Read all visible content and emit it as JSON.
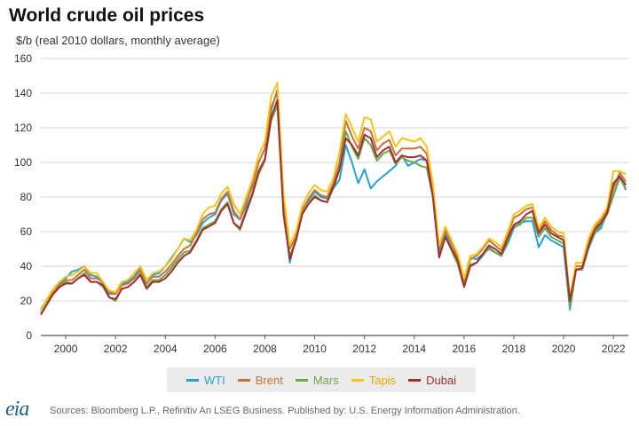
{
  "header": {
    "title": "World crude oil prices",
    "subtitle": "$/b (real 2010 dollars, monthly average)"
  },
  "footer": {
    "logo": "eia",
    "sources": "Sources: Bloomberg L.P., Refinitiv An LSEG Business. Published by: U.S. Energy Information Administration."
  },
  "chart_data": {
    "type": "line",
    "title": "World crude oil prices",
    "ylabel": "$/b (real 2010 dollars, monthly average)",
    "xlabel": "",
    "xlim": [
      1999.0,
      2022.6
    ],
    "ylim": [
      0,
      160
    ],
    "yticks": [
      0,
      20,
      40,
      60,
      80,
      100,
      120,
      140,
      160
    ],
    "xticks": [
      2000,
      2002,
      2004,
      2006,
      2008,
      2010,
      2012,
      2014,
      2016,
      2018,
      2020,
      2022
    ],
    "xtick_labels": [
      "2000",
      "2002",
      "2004",
      "2006",
      "2008",
      "2010",
      "2012",
      "2014",
      "2016",
      "2018",
      "2020",
      "2022"
    ],
    "grid": "horizontal",
    "legend_position": "bottom",
    "x": [
      1999.0,
      1999.25,
      1999.5,
      1999.75,
      2000.0,
      2000.25,
      2000.5,
      2000.75,
      2001.0,
      2001.25,
      2001.5,
      2001.75,
      2002.0,
      2002.25,
      2002.5,
      2002.75,
      2003.0,
      2003.25,
      2003.5,
      2003.75,
      2004.0,
      2004.25,
      2004.5,
      2004.75,
      2005.0,
      2005.25,
      2005.5,
      2005.75,
      2006.0,
      2006.25,
      2006.5,
      2006.75,
      2007.0,
      2007.25,
      2007.5,
      2007.75,
      2008.0,
      2008.25,
      2008.5,
      2008.75,
      2009.0,
      2009.25,
      2009.5,
      2009.75,
      2010.0,
      2010.25,
      2010.5,
      2010.75,
      2011.0,
      2011.25,
      2011.5,
      2011.75,
      2012.0,
      2012.25,
      2012.5,
      2012.75,
      2013.0,
      2013.25,
      2013.5,
      2013.75,
      2014.0,
      2014.25,
      2014.5,
      2014.75,
      2015.0,
      2015.25,
      2015.5,
      2015.75,
      2016.0,
      2016.25,
      2016.5,
      2016.75,
      2017.0,
      2017.25,
      2017.5,
      2017.75,
      2018.0,
      2018.25,
      2018.5,
      2018.75,
      2019.0,
      2019.25,
      2019.5,
      2019.75,
      2020.0,
      2020.25,
      2020.5,
      2020.75,
      2021.0,
      2021.25,
      2021.5,
      2021.75,
      2022.0,
      2022.25,
      2022.5
    ],
    "series": [
      {
        "name": "WTI",
        "color": "#2a9fd6",
        "values": [
          15,
          21,
          27,
          30,
          33,
          37,
          38,
          40,
          35,
          34,
          30,
          24,
          24,
          30,
          31,
          34,
          40,
          32,
          35,
          36,
          40,
          45,
          50,
          56,
          54,
          58,
          65,
          68,
          70,
          78,
          82,
          70,
          67,
          75,
          88,
          100,
          108,
          130,
          142,
          80,
          42,
          57,
          73,
          78,
          83,
          80,
          79,
          85,
          90,
          110,
          100,
          88,
          96,
          85,
          89,
          92,
          95,
          98,
          104,
          98,
          100,
          102,
          101,
          82,
          48,
          59,
          50,
          44,
          31,
          45,
          44,
          47,
          50,
          48,
          46,
          53,
          62,
          65,
          66,
          66,
          51,
          58,
          55,
          53,
          51,
          15,
          38,
          38,
          50,
          59,
          62,
          71,
          81,
          92,
          84
        ]
      },
      {
        "name": "Brent",
        "color": "#c8723a",
        "values": [
          14,
          20,
          25,
          29,
          32,
          32,
          35,
          38,
          33,
          33,
          31,
          25,
          24,
          29,
          30,
          33,
          38,
          30,
          34,
          34,
          37,
          41,
          46,
          50,
          52,
          59,
          67,
          70,
          71,
          79,
          83,
          72,
          67,
          77,
          86,
          100,
          108,
          132,
          140,
          75,
          50,
          57,
          72,
          79,
          84,
          81,
          80,
          88,
          100,
          124,
          115,
          108,
          120,
          118,
          107,
          111,
          113,
          104,
          108,
          108,
          108,
          109,
          105,
          84,
          50,
          61,
          53,
          45,
          31,
          44,
          46,
          50,
          55,
          52,
          49,
          58,
          68,
          70,
          73,
          74,
          60,
          66,
          61,
          58,
          57,
          21,
          40,
          40,
          54,
          62,
          67,
          73,
          85,
          94,
          89
        ]
      },
      {
        "name": "Mars",
        "color": "#6aa84f",
        "values": [
          13,
          19,
          24,
          28,
          31,
          30,
          33,
          36,
          31,
          31,
          28,
          22,
          20,
          27,
          28,
          31,
          36,
          28,
          32,
          32,
          35,
          39,
          44,
          48,
          49,
          55,
          62,
          64,
          66,
          73,
          77,
          65,
          61,
          71,
          81,
          93,
          101,
          124,
          133,
          70,
          46,
          55,
          70,
          76,
          81,
          78,
          77,
          85,
          96,
          118,
          109,
          102,
          114,
          110,
          101,
          105,
          107,
          99,
          103,
          101,
          100,
          98,
          97,
          80,
          46,
          57,
          49,
          41,
          28,
          41,
          42,
          46,
          51,
          48,
          46,
          55,
          63,
          64,
          68,
          68,
          57,
          62,
          57,
          55,
          53,
          17,
          38,
          38,
          51,
          59,
          64,
          70,
          81,
          91,
          85
        ]
      },
      {
        "name": "Tapis",
        "color": "#f5c518",
        "values": [
          14,
          21,
          27,
          31,
          34,
          35,
          37,
          40,
          36,
          36,
          31,
          26,
          25,
          31,
          32,
          36,
          40,
          32,
          36,
          37,
          40,
          44,
          50,
          56,
          55,
          61,
          70,
          74,
          75,
          82,
          86,
          76,
          70,
          80,
          90,
          104,
          112,
          138,
          146,
          82,
          52,
          60,
          75,
          82,
          87,
          84,
          83,
          91,
          106,
          128,
          120,
          112,
          126,
          125,
          112,
          115,
          118,
          109,
          114,
          113,
          112,
          114,
          109,
          88,
          52,
          63,
          55,
          47,
          33,
          46,
          47,
          51,
          56,
          54,
          51,
          60,
          70,
          72,
          75,
          76,
          62,
          68,
          63,
          60,
          59,
          22,
          42,
          42,
          56,
          64,
          68,
          74,
          95,
          95,
          93
        ]
      },
      {
        "name": "Dubai",
        "color": "#a12f2f",
        "values": [
          12,
          18,
          24,
          28,
          30,
          30,
          33,
          35,
          31,
          31,
          29,
          22,
          21,
          27,
          28,
          31,
          35,
          27,
          31,
          31,
          33,
          37,
          42,
          46,
          48,
          54,
          61,
          63,
          65,
          72,
          76,
          65,
          62,
          72,
          82,
          95,
          102,
          126,
          136,
          70,
          44,
          55,
          70,
          76,
          80,
          78,
          77,
          86,
          96,
          114,
          110,
          104,
          116,
          114,
          103,
          107,
          109,
          100,
          104,
          103,
          103,
          104,
          101,
          80,
          45,
          57,
          50,
          43,
          28,
          40,
          42,
          47,
          52,
          50,
          47,
          56,
          64,
          66,
          70,
          72,
          59,
          64,
          59,
          57,
          55,
          20,
          38,
          39,
          52,
          61,
          65,
          71,
          88,
          92,
          87
        ]
      }
    ]
  }
}
